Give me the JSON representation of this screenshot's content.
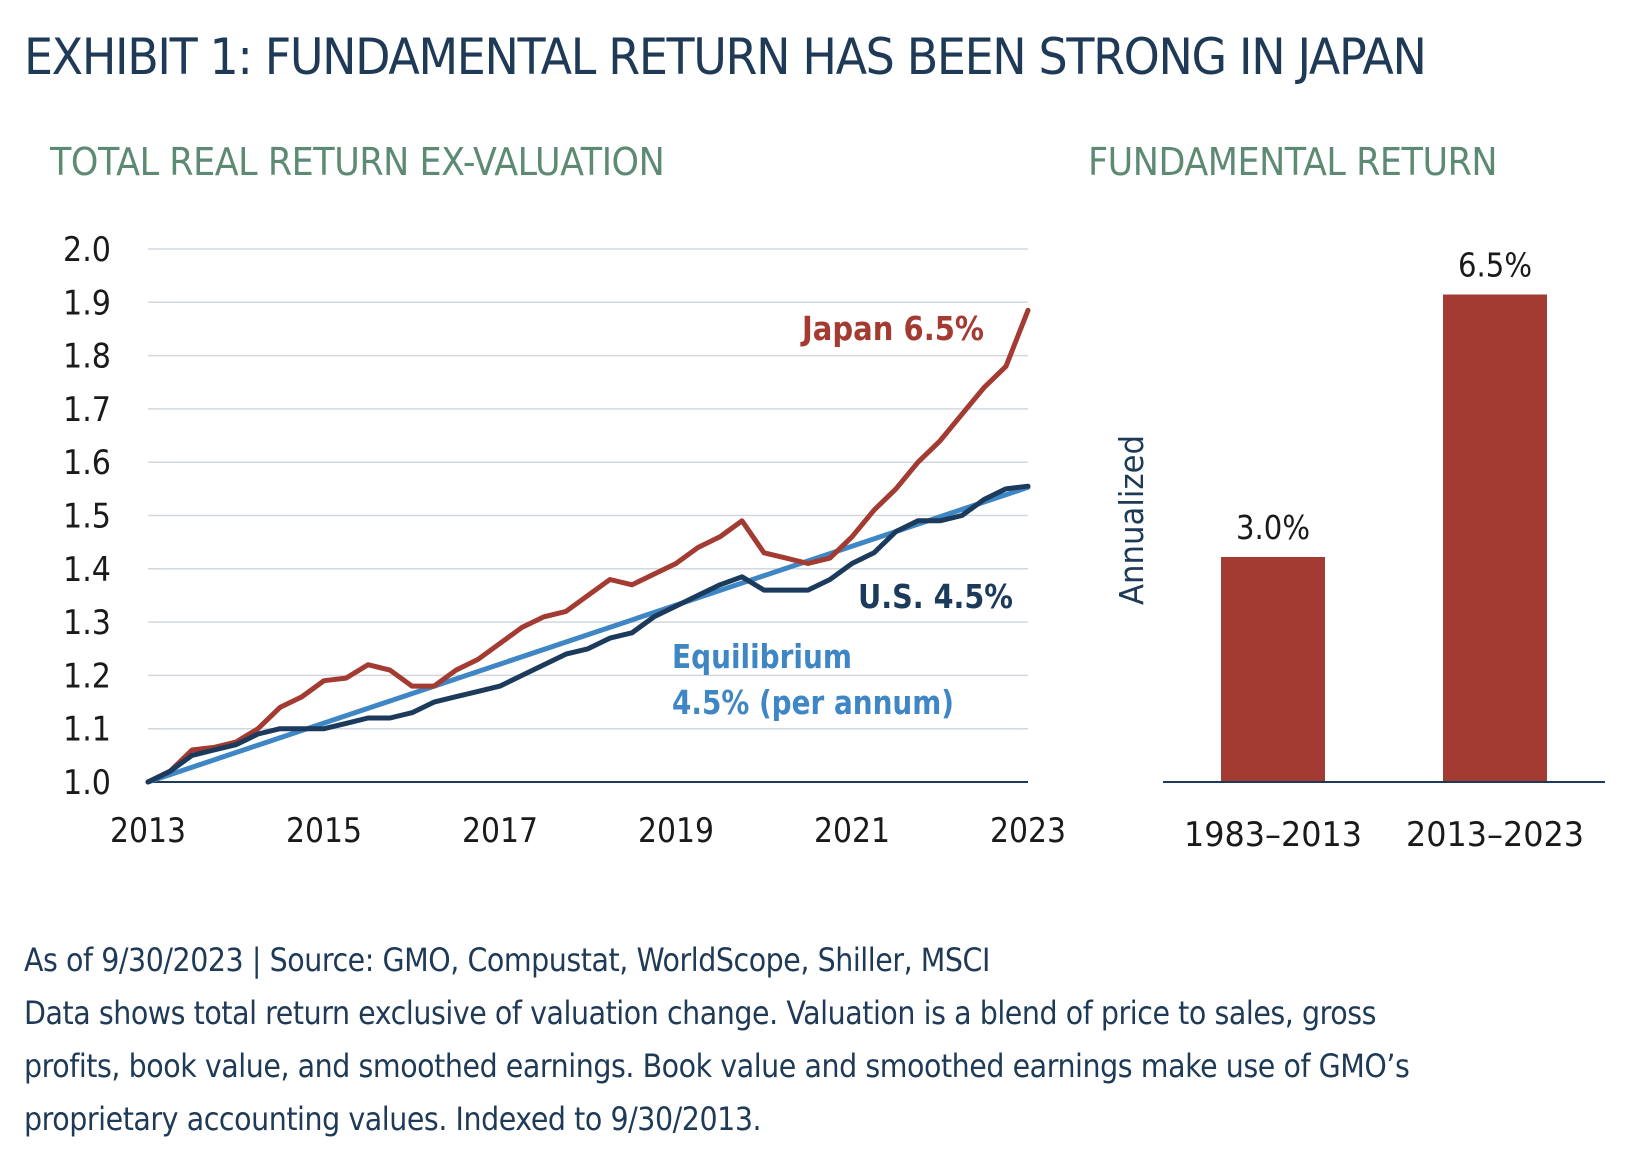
{
  "title": "EXHIBIT 1: FUNDAMENTAL RETURN HAS BEEN STRONG IN JAPAN",
  "footnotes": {
    "source": "As of 9/30/2023 | Source: GMO, Compustat, WorldScope, Shiller, MSCI",
    "description_lines": [
      "Data shows total return exclusive of valuation change. Valuation is a blend of price to sales, gross",
      "profits, book value, and smoothed earnings. Book value and smoothed earnings make use of GMO’s",
      "proprietary accounting values. Indexed to 9/30/2013."
    ]
  },
  "colors": {
    "title": "#1e3a57",
    "subtitle": "#5d8a73",
    "japan": "#a33b32",
    "us": "#1b3a5c",
    "equilibrium": "#3f86c4",
    "grid": "#d2d8de",
    "axis": "#1e3a57",
    "bar": "#a33b32"
  },
  "chart_data": [
    {
      "type": "line",
      "title": "TOTAL REAL RETURN EX-VALUATION",
      "xlabel": "",
      "ylabel": "",
      "xlim": [
        2013.0,
        2023.0
      ],
      "ylim": [
        1.0,
        2.0
      ],
      "xticks": [
        2013,
        2015,
        2017,
        2019,
        2021,
        2023
      ],
      "xtick_labels": [
        "2013",
        "2015",
        "2017",
        "2019",
        "2021",
        "2023"
      ],
      "yticks": [
        1.0,
        1.1,
        1.2,
        1.3,
        1.4,
        1.5,
        1.6,
        1.7,
        1.8,
        1.9,
        2.0
      ],
      "ytick_labels": [
        "1.0",
        "1.1",
        "1.2",
        "1.3",
        "1.4",
        "1.5",
        "1.6",
        "1.7",
        "1.8",
        "1.9",
        "2.0"
      ],
      "grid": true,
      "series": [
        {
          "name": "Japan",
          "label_lines": [
            "Japan 6.5%"
          ],
          "color_key": "japan",
          "x": [
            2013.0,
            2013.25,
            2013.5,
            2013.75,
            2014.0,
            2014.25,
            2014.5,
            2014.75,
            2015.0,
            2015.25,
            2015.5,
            2015.75,
            2016.0,
            2016.25,
            2016.5,
            2016.75,
            2017.0,
            2017.25,
            2017.5,
            2017.75,
            2018.0,
            2018.25,
            2018.5,
            2018.75,
            2019.0,
            2019.25,
            2019.5,
            2019.75,
            2020.0,
            2020.25,
            2020.5,
            2020.75,
            2021.0,
            2021.25,
            2021.5,
            2021.75,
            2022.0,
            2022.25,
            2022.5,
            2022.75,
            2023.0
          ],
          "values": [
            1.0,
            1.02,
            1.06,
            1.065,
            1.075,
            1.1,
            1.14,
            1.16,
            1.19,
            1.195,
            1.22,
            1.21,
            1.18,
            1.18,
            1.21,
            1.23,
            1.26,
            1.29,
            1.31,
            1.32,
            1.35,
            1.38,
            1.37,
            1.39,
            1.41,
            1.44,
            1.46,
            1.49,
            1.43,
            1.42,
            1.41,
            1.42,
            1.46,
            1.51,
            1.55,
            1.6,
            1.64,
            1.69,
            1.74,
            1.78,
            1.885
          ]
        },
        {
          "name": "U.S.",
          "label_lines": [
            "U.S. 4.5%"
          ],
          "color_key": "us",
          "x": [
            2013.0,
            2013.25,
            2013.5,
            2013.75,
            2014.0,
            2014.25,
            2014.5,
            2014.75,
            2015.0,
            2015.25,
            2015.5,
            2015.75,
            2016.0,
            2016.25,
            2016.5,
            2016.75,
            2017.0,
            2017.25,
            2017.5,
            2017.75,
            2018.0,
            2018.25,
            2018.5,
            2018.75,
            2019.0,
            2019.25,
            2019.5,
            2019.75,
            2020.0,
            2020.25,
            2020.5,
            2020.75,
            2021.0,
            2021.25,
            2021.5,
            2021.75,
            2022.0,
            2022.25,
            2022.5,
            2022.75,
            2023.0
          ],
          "values": [
            1.0,
            1.02,
            1.05,
            1.06,
            1.07,
            1.09,
            1.1,
            1.1,
            1.1,
            1.11,
            1.12,
            1.12,
            1.13,
            1.15,
            1.16,
            1.17,
            1.18,
            1.2,
            1.22,
            1.24,
            1.25,
            1.27,
            1.28,
            1.31,
            1.33,
            1.35,
            1.37,
            1.385,
            1.36,
            1.36,
            1.36,
            1.38,
            1.41,
            1.43,
            1.47,
            1.49,
            1.49,
            1.5,
            1.53,
            1.55,
            1.555
          ]
        },
        {
          "name": "Equilibrium",
          "label_lines": [
            "Equilibrium",
            "4.5% (per annum)"
          ],
          "color_key": "equilibrium",
          "x": [
            2013.0,
            2023.0
          ],
          "values": [
            1.0,
            1.553
          ]
        }
      ]
    },
    {
      "type": "bar",
      "title": "FUNDAMENTAL RETURN",
      "ylabel": "Annualized",
      "categories": [
        "1983–2013",
        "2013–2023"
      ],
      "values": [
        3.0,
        6.5
      ],
      "value_labels": [
        "3.0%",
        "6.5%"
      ],
      "ylim": [
        0,
        7.0
      ],
      "grid": false
    }
  ]
}
